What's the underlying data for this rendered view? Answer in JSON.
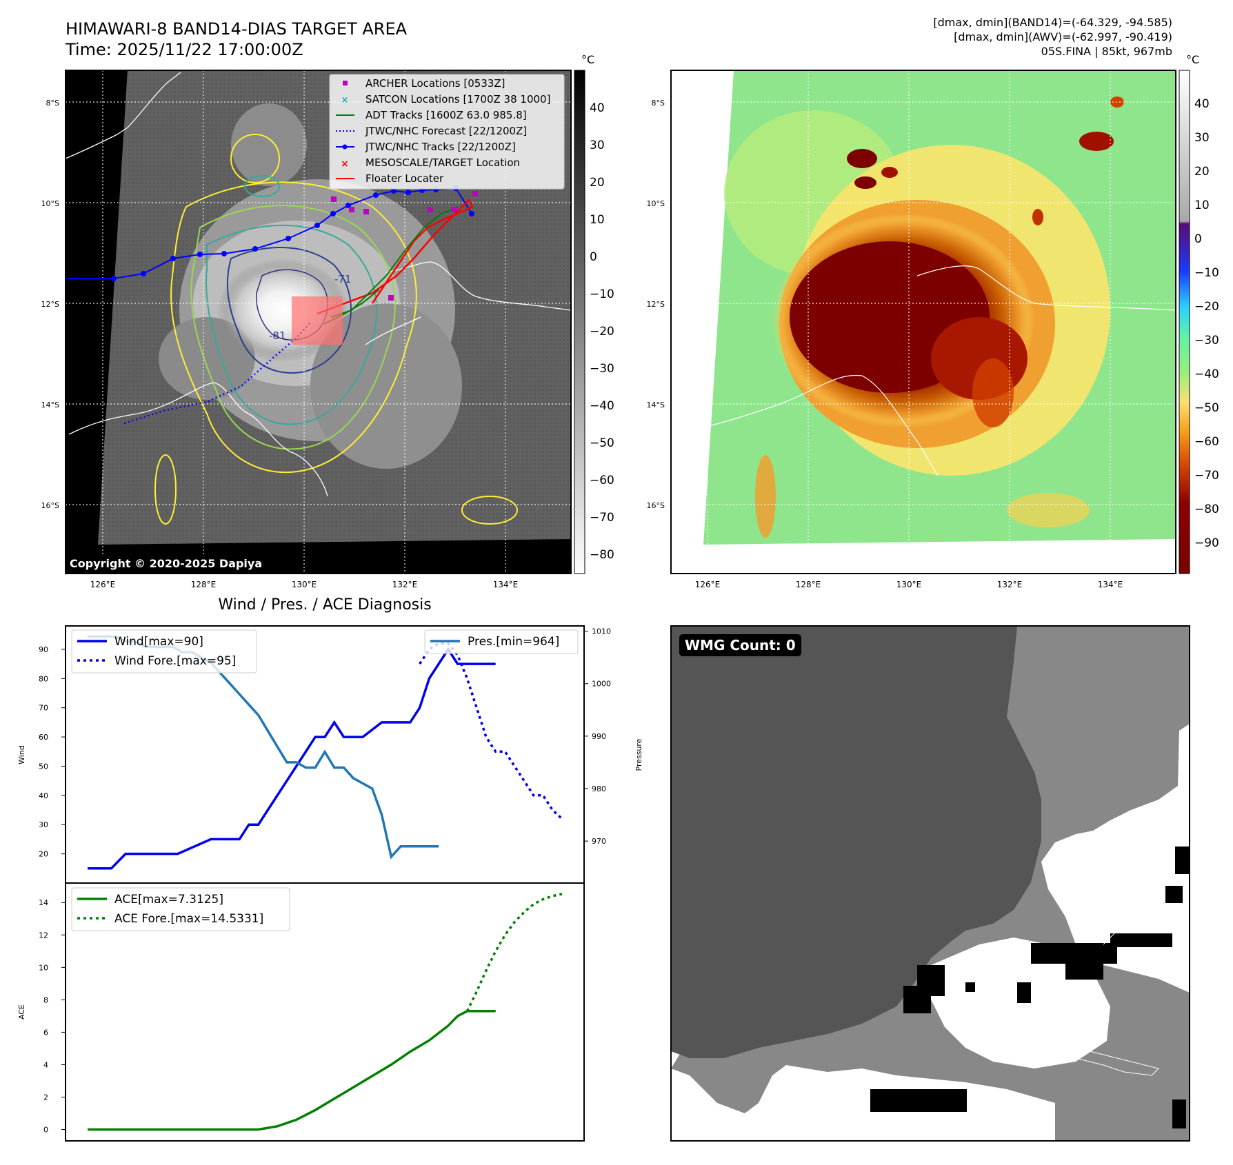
{
  "header": {
    "title": "HIMAWARI-8 BAND14-DIAS TARGET AREA",
    "time": "Time: 2025/11/22 17:00:00Z",
    "stats_line1": "[dmax, dmin](BAND14)=(-64.329, -94.585)",
    "stats_line2": "[dmax, dmin](AWV)=(-62.997, -90.419)",
    "stats_line3": "05S.FINA | 85kt, 967mb"
  },
  "maps": {
    "lat_labels": [
      "8°S",
      "10°S",
      "12°S",
      "14°S",
      "16°S"
    ],
    "lon_labels": [
      "126°E",
      "128°E",
      "130°E",
      "132°E",
      "134°E"
    ],
    "copyright": "Copyright © 2020-2025 Dapiya",
    "contour_labels": [
      "-71",
      "-81"
    ],
    "legend": [
      {
        "label": "ARCHER Locations [0533Z]",
        "color": "#c000c0"
      },
      {
        "label": "SATCON Locations [1700Z 38 1000]",
        "color": "#00b5b5"
      },
      {
        "label": "ADT Tracks [1600Z 63.0 985.8]",
        "color": "#008000"
      },
      {
        "label": "JTWC/NHC Forecast [22/1200Z]",
        "color": "#0000ff"
      },
      {
        "label": "JTWC/NHC Tracks [22/1200Z]",
        "color": "#0000ff"
      },
      {
        "label": "MESOSCALE/TARGET Location",
        "color": "#ff0000"
      },
      {
        "label": "Floater Locater",
        "color": "#ff0000"
      }
    ],
    "colorbar1": {
      "unit": "°C",
      "ticks": [
        "40",
        "30",
        "20",
        "10",
        "0",
        "−10",
        "−20",
        "−30",
        "−40",
        "−50",
        "−60",
        "−70",
        "−80"
      ]
    },
    "colorbar2": {
      "unit": "°C",
      "ticks": [
        "40",
        "30",
        "20",
        "10",
        "0",
        "−10",
        "−20",
        "−30",
        "−40",
        "−50",
        "−60",
        "−70",
        "−80",
        "−90"
      ]
    }
  },
  "wmg": {
    "label": "WMG Count: 0"
  },
  "chart_data": [
    {
      "type": "line",
      "title": "Wind / Pres. / ACE Diagnosis",
      "ylabel": "Wind",
      "ylabel_right": "Pressure",
      "ylim": [
        10,
        98
      ],
      "ylim_right": [
        962,
        1011
      ],
      "yticks": [
        20,
        30,
        40,
        50,
        60,
        70,
        80,
        90
      ],
      "yticks_right": [
        970,
        980,
        990,
        1000,
        1010
      ],
      "x": [
        0,
        1,
        2,
        3,
        4,
        5,
        6,
        7,
        8,
        9,
        10,
        11,
        12,
        13,
        14,
        15,
        16,
        17,
        18,
        19,
        20,
        21,
        22,
        23,
        24,
        25,
        26,
        27,
        28,
        29,
        30,
        31,
        32,
        33,
        34,
        35,
        36,
        37,
        38,
        39,
        40,
        41,
        42,
        43,
        44,
        45,
        46,
        47,
        48,
        49,
        50,
        51,
        52,
        53,
        54,
        55,
        56,
        57,
        58,
        59,
        60,
        61,
        62,
        63,
        64,
        65,
        66,
        67,
        68,
        69,
        70,
        71,
        72,
        73,
        74,
        75,
        76,
        77,
        78,
        79,
        80,
        81,
        82,
        83,
        84,
        85,
        86,
        87,
        88,
        89,
        90,
        91,
        92,
        93,
        94,
        95,
        96,
        97,
        98,
        99,
        100
      ],
      "series": [
        {
          "name": "Wind[max=90]",
          "style": "solid",
          "color": "#0000ee",
          "x": [
            0,
            5,
            8,
            14,
            16,
            19,
            26,
            30,
            32,
            34,
            36,
            38,
            46,
            48,
            50,
            52,
            54,
            56,
            58,
            62,
            64,
            68,
            70,
            72,
            76,
            78,
            80,
            84,
            86
          ],
          "values": [
            15,
            15,
            20,
            20,
            20,
            20,
            25,
            25,
            25,
            30,
            30,
            35,
            55,
            60,
            60,
            65,
            60,
            60,
            60,
            65,
            65,
            65,
            70,
            80,
            90,
            85,
            85,
            85,
            85
          ]
        },
        {
          "name": "Wind Fore.[max=95]",
          "style": "dotted",
          "color": "#0000ee",
          "x": [
            70,
            72,
            74,
            76,
            78,
            80,
            82,
            84,
            86,
            88,
            90,
            92,
            94,
            96,
            98,
            100
          ],
          "values": [
            85,
            90,
            92,
            92,
            88,
            80,
            70,
            60,
            55,
            55,
            50,
            45,
            40,
            40,
            35,
            32
          ]
        },
        {
          "name": "Pres.[min=964]",
          "style": "solid",
          "color": "#1f77b4",
          "axis": "right",
          "x": [
            0,
            4,
            6,
            8,
            10,
            12,
            14,
            16,
            18,
            20,
            22,
            24,
            26,
            28,
            30,
            32,
            34,
            36,
            38,
            40,
            42,
            44,
            46,
            48,
            50,
            52,
            54,
            56,
            58,
            60,
            62,
            64,
            66,
            68,
            70,
            72,
            74
          ],
          "values": [
            1009,
            1009,
            1009,
            1008,
            1008,
            1007,
            1007,
            1007,
            1007,
            1006,
            1006,
            1005,
            1004,
            1002,
            1000,
            998,
            996,
            994,
            991,
            988,
            985,
            985,
            984,
            984,
            987,
            984,
            984,
            982,
            981,
            980,
            975,
            967,
            969,
            969,
            969,
            969,
            969
          ]
        }
      ]
    },
    {
      "type": "line",
      "ylabel": "ACE",
      "ylim": [
        -0.7,
        15.2
      ],
      "yticks": [
        0,
        2,
        4,
        6,
        8,
        10,
        12,
        14
      ],
      "series": [
        {
          "name": "ACE[max=7.3125]",
          "style": "solid",
          "color": "#008000",
          "x": [
            0,
            10,
            20,
            30,
            36,
            40,
            44,
            48,
            52,
            56,
            60,
            64,
            68,
            72,
            76,
            78,
            80,
            82,
            84,
            86
          ],
          "values": [
            0,
            0,
            0,
            0,
            0,
            0.2,
            0.6,
            1.2,
            1.9,
            2.6,
            3.3,
            4.0,
            4.8,
            5.5,
            6.4,
            7.0,
            7.3,
            7.3,
            7.3,
            7.3
          ]
        },
        {
          "name": "ACE Fore.[max=14.5331]",
          "style": "dotted",
          "color": "#008000",
          "x": [
            80,
            82,
            84,
            86,
            88,
            90,
            92,
            94,
            96,
            98,
            100
          ],
          "values": [
            7.3,
            8.5,
            9.8,
            11.0,
            12.0,
            12.8,
            13.4,
            13.9,
            14.2,
            14.4,
            14.53
          ]
        }
      ]
    }
  ]
}
